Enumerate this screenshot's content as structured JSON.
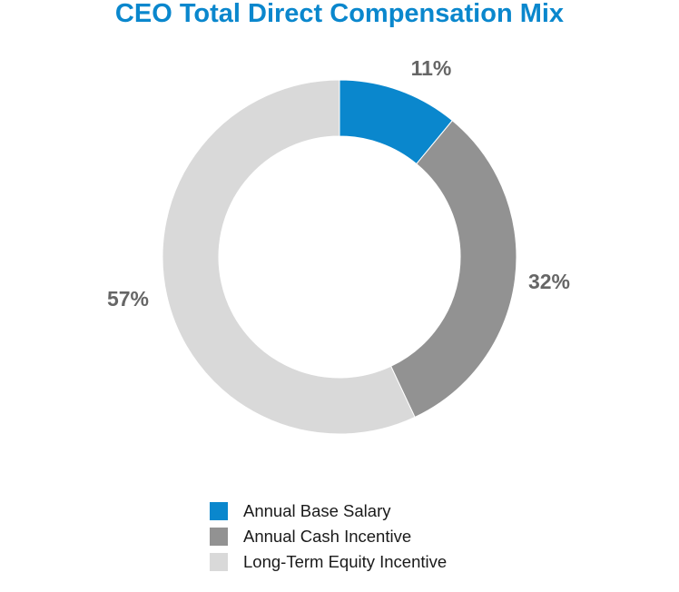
{
  "chart_data": {
    "type": "pie",
    "title": "CEO Total Direct Compensation Mix",
    "donut": true,
    "legend_position": "bottom",
    "series": [
      {
        "name": "Annual Base Salary",
        "value": 11,
        "label": "11%",
        "color": "#0a87cd"
      },
      {
        "name": "Annual Cash Incentive",
        "value": 32,
        "label": "32%",
        "color": "#929292"
      },
      {
        "name": "Long-Term Equity Incentive",
        "value": 57,
        "label": "57%",
        "color": "#d9d9d9"
      }
    ]
  }
}
